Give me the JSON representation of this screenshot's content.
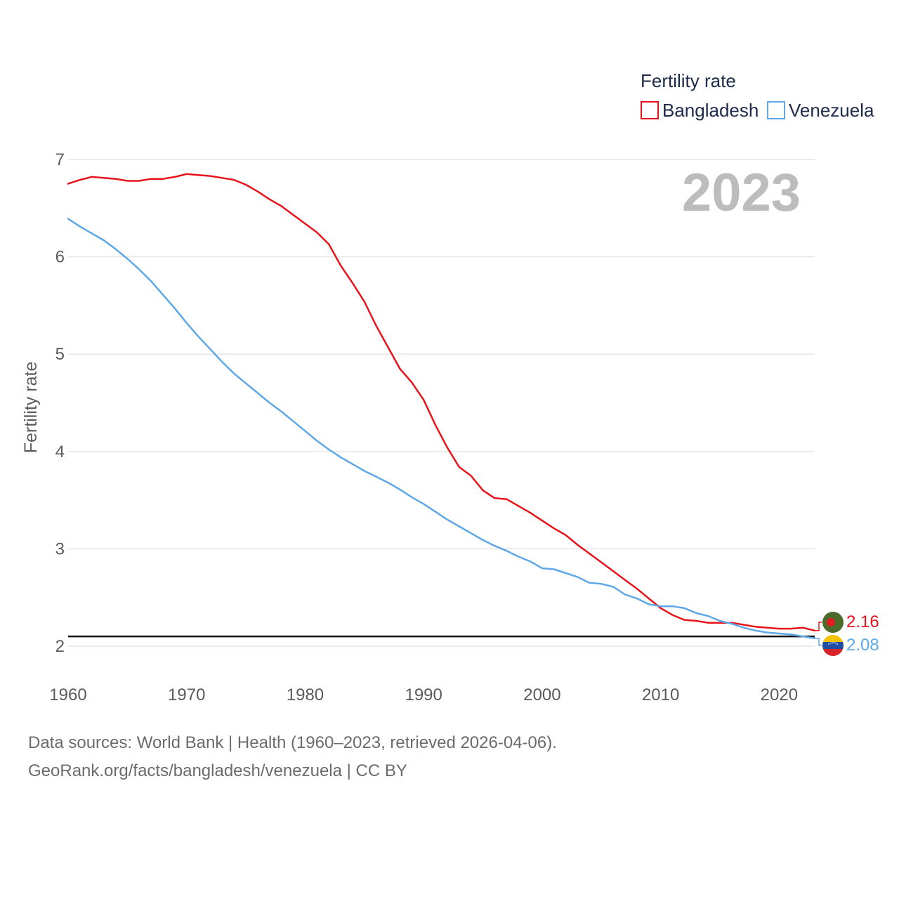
{
  "chart_data": {
    "type": "line",
    "title": "Fertility rate",
    "year_label": "2023",
    "xlabel": "",
    "ylabel": "Fertility rate",
    "xlim": [
      1960,
      2023
    ],
    "ylim": [
      2,
      7
    ],
    "x_ticks": [
      1960,
      1970,
      1980,
      1990,
      2000,
      2010,
      2020
    ],
    "x_tick_labels": [
      "1960",
      "1970",
      "1980",
      "1990",
      "2000",
      "2010",
      "2020"
    ],
    "y_ticks": [
      2,
      3,
      4,
      5,
      6,
      7
    ],
    "y_tick_labels": [
      "2",
      "3",
      "4",
      "5",
      "6",
      "7"
    ],
    "reference_line": 2.1,
    "grid": true,
    "legend_position": "top-right",
    "x": [
      1960,
      1961,
      1962,
      1963,
      1964,
      1965,
      1966,
      1967,
      1968,
      1969,
      1970,
      1971,
      1972,
      1973,
      1974,
      1975,
      1976,
      1977,
      1978,
      1979,
      1980,
      1981,
      1982,
      1983,
      1984,
      1985,
      1986,
      1987,
      1988,
      1989,
      1990,
      1991,
      1992,
      1993,
      1994,
      1995,
      1996,
      1997,
      1998,
      1999,
      2000,
      2001,
      2002,
      2003,
      2004,
      2005,
      2006,
      2007,
      2008,
      2009,
      2010,
      2011,
      2012,
      2013,
      2014,
      2015,
      2016,
      2017,
      2018,
      2019,
      2020,
      2021,
      2022,
      2023
    ],
    "series": [
      {
        "name": "Bangladesh",
        "color": "#e8141b",
        "end_label": "2.16",
        "flag": "bangladesh-flag",
        "values": [
          6.75,
          6.79,
          6.82,
          6.81,
          6.8,
          6.78,
          6.78,
          6.8,
          6.8,
          6.82,
          6.85,
          6.84,
          6.83,
          6.81,
          6.79,
          6.74,
          6.67,
          6.59,
          6.52,
          6.43,
          6.34,
          6.25,
          6.13,
          5.91,
          5.73,
          5.54,
          5.29,
          5.07,
          4.85,
          4.71,
          4.53,
          4.27,
          4.04,
          3.84,
          3.75,
          3.6,
          3.52,
          3.51,
          3.44,
          3.37,
          3.29,
          3.21,
          3.14,
          3.04,
          2.95,
          2.86,
          2.77,
          2.68,
          2.59,
          2.49,
          2.39,
          2.32,
          2.27,
          2.26,
          2.24,
          2.24,
          2.24,
          2.22,
          2.2,
          2.19,
          2.18,
          2.18,
          2.19,
          2.16
        ]
      },
      {
        "name": "Venezuela",
        "color": "#5ea8e8",
        "end_label": "2.08",
        "flag": "venezuela-flag",
        "values": [
          6.39,
          6.31,
          6.24,
          6.17,
          6.08,
          5.98,
          5.87,
          5.75,
          5.61,
          5.47,
          5.32,
          5.18,
          5.05,
          4.92,
          4.8,
          4.7,
          4.6,
          4.5,
          4.41,
          4.31,
          4.21,
          4.11,
          4.02,
          3.94,
          3.87,
          3.8,
          3.74,
          3.68,
          3.61,
          3.53,
          3.46,
          3.38,
          3.3,
          3.23,
          3.16,
          3.09,
          3.03,
          2.98,
          2.92,
          2.87,
          2.8,
          2.79,
          2.75,
          2.71,
          2.65,
          2.64,
          2.61,
          2.53,
          2.49,
          2.43,
          2.41,
          2.41,
          2.39,
          2.34,
          2.31,
          2.26,
          2.23,
          2.19,
          2.16,
          2.14,
          2.13,
          2.12,
          2.1,
          2.08
        ]
      }
    ]
  },
  "footer": {
    "line1": "Data sources: World Bank | Health (1960–2023, retrieved 2026-04-06).",
    "line2": "GeoRank.org/facts/bangladesh/venezuela | CC BY"
  }
}
